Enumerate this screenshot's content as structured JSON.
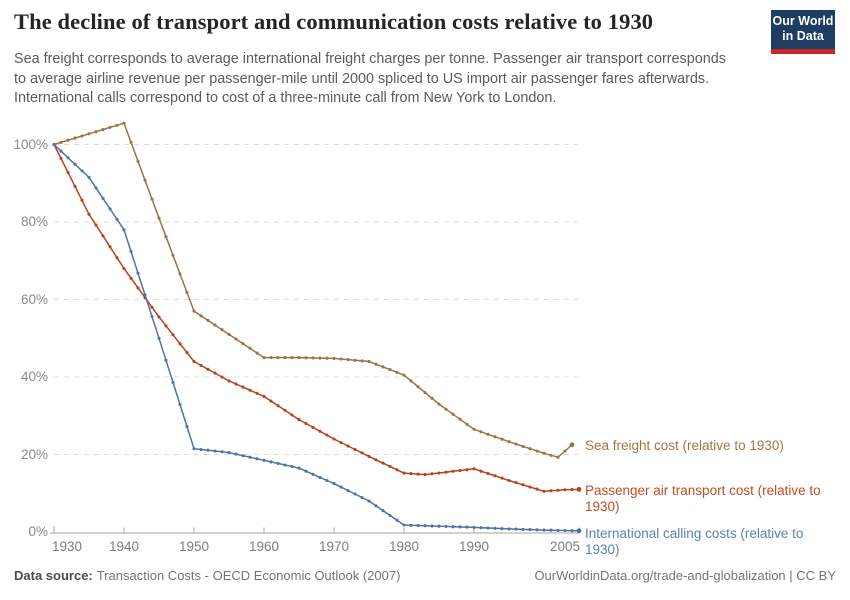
{
  "header": {
    "title": "The decline of transport and communication costs relative to 1930",
    "subtitle": "Sea freight corresponds to average international freight charges per tonne. Passenger air transport corresponds\nto average airline revenue per passenger-mile until 2000 spliced to US import air passenger fares afterwards.\nInternational calls correspond to cost of a three-minute call from New York to London.",
    "logo": {
      "line1": "Our World",
      "line2": "in Data",
      "bg_color": "#1d3d63",
      "accent_color": "#c9262c"
    }
  },
  "chart_data": {
    "type": "line",
    "title": "The decline of transport and communication costs relative to 1930",
    "xlabel": "",
    "ylabel": "",
    "xlim": [
      1930,
      2005
    ],
    "ylim": [
      0,
      105.5
    ],
    "grid": true,
    "legend_position": "right-end-of-line-labels",
    "marker_interval_years": 1,
    "style": {
      "grid_color": "#dcdcdc",
      "axis_color": "#a6a6a6"
    },
    "y_ticks": [
      {
        "label": "100%",
        "value": 100
      },
      {
        "label": "80%",
        "value": 80
      },
      {
        "label": "60%",
        "value": 60
      },
      {
        "label": "40%",
        "value": 40
      },
      {
        "label": "20%",
        "value": 20
      },
      {
        "label": "0%",
        "value": 0
      }
    ],
    "x_ticks": [
      {
        "label": "1930",
        "year": 1930
      },
      {
        "label": "1940",
        "year": 1940
      },
      {
        "label": "1950",
        "year": 1950
      },
      {
        "label": "1960",
        "year": 1960
      },
      {
        "label": "1970",
        "year": 1970
      },
      {
        "label": "1980",
        "year": 1980
      },
      {
        "label": "1990",
        "year": 1990
      },
      {
        "label": "2005",
        "year": 2005
      }
    ],
    "series": [
      {
        "name": "Sea freight cost",
        "label": "Sea freight cost (relative to 1930)",
        "color": "#9c7343",
        "label_color": "#a07646",
        "points": [
          [
            1930,
            100
          ],
          [
            1940,
            105.5
          ],
          [
            1945,
            81
          ],
          [
            1950,
            57
          ],
          [
            1955,
            51
          ],
          [
            1960,
            45
          ],
          [
            1965,
            45
          ],
          [
            1970,
            44.8
          ],
          [
            1975,
            44
          ],
          [
            1980,
            40.5
          ],
          [
            1985,
            33
          ],
          [
            1990,
            26.5
          ],
          [
            1995,
            23.3
          ],
          [
            2000,
            20.3
          ],
          [
            2002,
            19.3
          ],
          [
            2004,
            22.5
          ]
        ]
      },
      {
        "name": "Passenger air transport cost",
        "label": "Passenger air transport cost (relative to\n1930)",
        "color": "#b5431f",
        "label_color": "#c04d27",
        "points": [
          [
            1930,
            100
          ],
          [
            1935,
            82
          ],
          [
            1940,
            68
          ],
          [
            1945,
            55.5
          ],
          [
            1950,
            44
          ],
          [
            1955,
            39
          ],
          [
            1960,
            35
          ],
          [
            1965,
            29
          ],
          [
            1970,
            24
          ],
          [
            1975,
            19.5
          ],
          [
            1980,
            15.2
          ],
          [
            1983,
            14.8
          ],
          [
            1990,
            16.3
          ],
          [
            1995,
            13.3
          ],
          [
            2000,
            10.5
          ],
          [
            2003,
            10.9
          ],
          [
            2005,
            11
          ]
        ]
      },
      {
        "name": "International calling costs",
        "label": "International calling costs (relative to\n1930)",
        "color": "#4e73a4",
        "label_color": "#5d81b2",
        "points": [
          [
            1930,
            100
          ],
          [
            1935,
            91.5
          ],
          [
            1940,
            78
          ],
          [
            1945,
            50
          ],
          [
            1950,
            21.5
          ],
          [
            1955,
            20.5
          ],
          [
            1960,
            18.5
          ],
          [
            1965,
            16.5
          ],
          [
            1970,
            12.5
          ],
          [
            1975,
            8
          ],
          [
            1980,
            1.8
          ],
          [
            1985,
            1.5
          ],
          [
            1990,
            1.2
          ],
          [
            1995,
            0.8
          ],
          [
            2000,
            0.5
          ],
          [
            2005,
            0.3
          ]
        ]
      }
    ]
  },
  "footer": {
    "data_source_label": "Data source:",
    "data_source_value": "Transaction Costs - OECD Economic Outlook (2007)",
    "credit": "OurWorldinData.org/trade-and-globalization | CC BY"
  }
}
